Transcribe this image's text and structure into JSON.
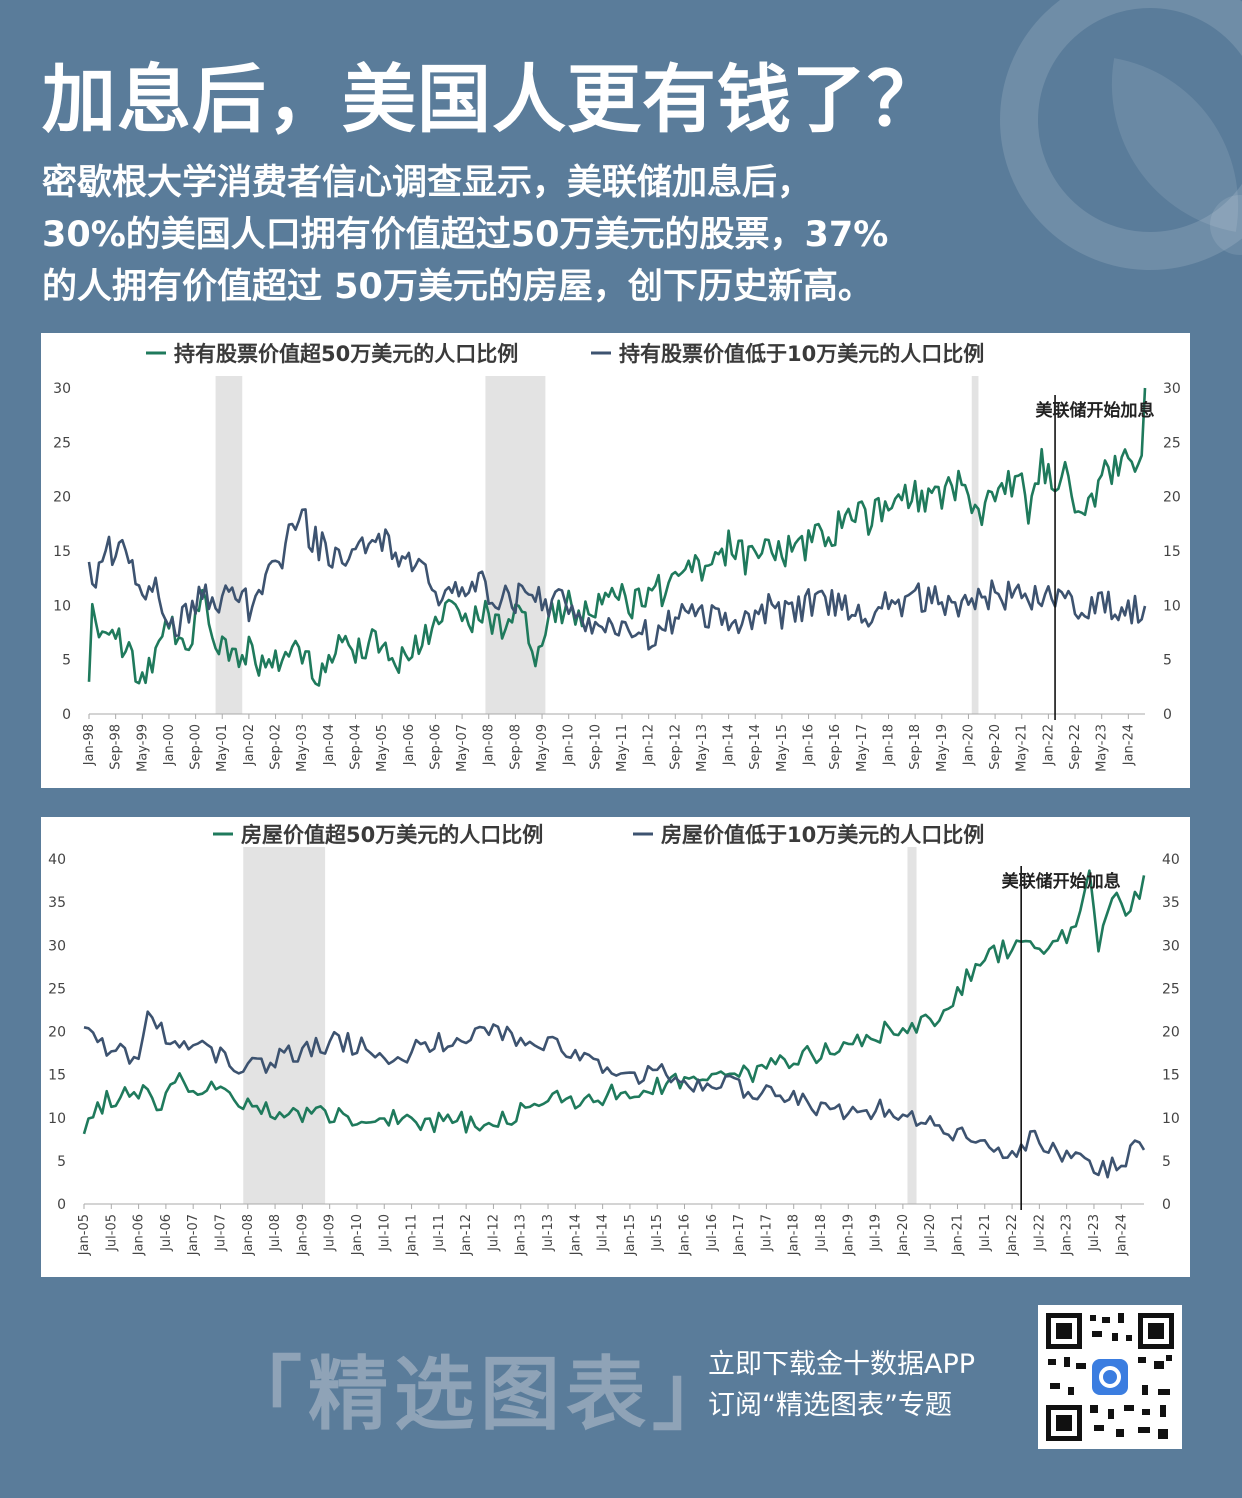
{
  "title": "加息后，美国人更有钱了？",
  "subtitle": [
    "密歇根大学消费者信心调查显示，美联储加息后，",
    "30%的美国人口拥有价值超过50万美元的股票，37%",
    "的人拥有价值超过 50万美元的房屋，创下历史新高。"
  ],
  "footer": {
    "brand": "「精选图表」",
    "line1": "立即下载金十数据APP",
    "line2": "订阅“精选图表”专题"
  },
  "colors": {
    "green": "#1f7a5c",
    "navy": "#3d5370",
    "recession": "#e3e3e3",
    "background": "#5a7c9a"
  },
  "chart_data": [
    {
      "type": "line",
      "x_start": "1998-01",
      "x_end": "2024-06",
      "xtick_labels": [
        "Jan-98",
        "Sep-98",
        "May-99",
        "Jan-00",
        "Sep-00",
        "May-01",
        "Jan-02",
        "Sep-02",
        "May-03",
        "Jan-04",
        "Sep-04",
        "May-05",
        "Jan-06",
        "Sep-06",
        "May-07",
        "Jan-08",
        "Sep-08",
        "May-09",
        "Jan-10",
        "Sep-10",
        "May-11",
        "Jan-12",
        "Sep-12",
        "May-13",
        "Jan-14",
        "Sep-14",
        "May-15",
        "Jan-16",
        "Sep-16",
        "May-17",
        "Jan-18",
        "Sep-18",
        "May-19",
        "Jan-20",
        "Sep-20",
        "May-21",
        "Jan-22",
        "Sep-22",
        "May-23",
        "Jan-24"
      ],
      "ylim": [
        0,
        30
      ],
      "yticks": [
        0,
        5,
        10,
        15,
        20,
        25,
        30
      ],
      "recession_bands": [
        [
          "2001-03",
          "2001-11"
        ],
        [
          "2007-12",
          "2009-06"
        ],
        [
          "2020-02",
          "2020-04"
        ]
      ],
      "annotation": {
        "text": "美联储开始加息",
        "x": "2022-03"
      },
      "series": [
        {
          "name": "持有股票价值超50万美元的人口比例",
          "color": "#1f7a5c",
          "points": [
            [
              "1998-01",
              2
            ],
            [
              "1998-02",
              9
            ],
            [
              "1998-06",
              8
            ],
            [
              "1998-12",
              6
            ],
            [
              "1999-03",
              4
            ],
            [
              "1999-06",
              3
            ],
            [
              "1999-09",
              6
            ],
            [
              "2000-01",
              8
            ],
            [
              "2000-06",
              6
            ],
            [
              "2000-11",
              10
            ],
            [
              "2001-03",
              7
            ],
            [
              "2001-07",
              5
            ],
            [
              "2002-01",
              6
            ],
            [
              "2002-06",
              4
            ],
            [
              "2003-01",
              6
            ],
            [
              "2003-06",
              5
            ],
            [
              "2003-09",
              3
            ],
            [
              "2004-01",
              6
            ],
            [
              "2004-09",
              6
            ],
            [
              "2005-03",
              7
            ],
            [
              "2005-09",
              5
            ],
            [
              "2006-03",
              6
            ],
            [
              "2006-09",
              8
            ],
            [
              "2007-02",
              10
            ],
            [
              "2007-06",
              9
            ],
            [
              "2008-01",
              9
            ],
            [
              "2008-06",
              8
            ],
            [
              "2008-11",
              10
            ],
            [
              "2009-03",
              5
            ],
            [
              "2009-08",
              9
            ],
            [
              "2009-12",
              10
            ],
            [
              "2010-06",
              9
            ],
            [
              "2011-01",
              11
            ],
            [
              "2011-09",
              10
            ],
            [
              "2012-03",
              12
            ],
            [
              "2012-06",
              11
            ],
            [
              "2012-09",
              13
            ],
            [
              "2013-01",
              14
            ],
            [
              "2013-05",
              13
            ],
            [
              "2013-10",
              14
            ],
            [
              "2014-02",
              16
            ],
            [
              "2014-06",
              14
            ],
            [
              "2014-11",
              16
            ],
            [
              "2015-04",
              15
            ],
            [
              "2015-10",
              15
            ],
            [
              "2016-03",
              16
            ],
            [
              "2016-09",
              17
            ],
            [
              "2017-03",
              19
            ],
            [
              "2017-07",
              18
            ],
            [
              "2018-01",
              19
            ],
            [
              "2018-06",
              20
            ],
            [
              "2018-11",
              20
            ],
            [
              "2019-03",
              20
            ],
            [
              "2019-09",
              21
            ],
            [
              "2020-01",
              21
            ],
            [
              "2020-04",
              18
            ],
            [
              "2020-08",
              20
            ],
            [
              "2021-01",
              21
            ],
            [
              "2021-05",
              22
            ],
            [
              "2021-07",
              19
            ],
            [
              "2021-11",
              23
            ],
            [
              "2022-03",
              21
            ],
            [
              "2022-06",
              24
            ],
            [
              "2022-09",
              20
            ],
            [
              "2022-12",
              18
            ],
            [
              "2023-03",
              20
            ],
            [
              "2023-07",
              23
            ],
            [
              "2023-10",
              22
            ],
            [
              "2024-01",
              24
            ],
            [
              "2024-03",
              22
            ],
            [
              "2024-05",
              25
            ],
            [
              "2024-06",
              30
            ]
          ]
        },
        {
          "name": "持有股票价值低于10万美元的人口比例",
          "color": "#3d5370",
          "points": [
            [
              "1998-01",
              15
            ],
            [
              "1998-02",
              12
            ],
            [
              "1998-07",
              15
            ],
            [
              "1998-12",
              16
            ],
            [
              "1999-03",
              13
            ],
            [
              "1999-06",
              11
            ],
            [
              "1999-09",
              12
            ],
            [
              "2000-01",
              8
            ],
            [
              "2000-06",
              9
            ],
            [
              "2000-11",
              11
            ],
            [
              "2001-03",
              10
            ],
            [
              "2001-07",
              11
            ],
            [
              "2002-01",
              10
            ],
            [
              "2002-06",
              12
            ],
            [
              "2002-11",
              14
            ],
            [
              "2003-04",
              19
            ],
            [
              "2003-08",
              16
            ],
            [
              "2004-01",
              15
            ],
            [
              "2004-06",
              14
            ],
            [
              "2004-11",
              15
            ],
            [
              "2005-06",
              16
            ],
            [
              "2005-11",
              14
            ],
            [
              "2006-03",
              14
            ],
            [
              "2006-09",
              11
            ],
            [
              "2007-02",
              11
            ],
            [
              "2007-09",
              12
            ],
            [
              "2008-03",
              11
            ],
            [
              "2008-09",
              10
            ],
            [
              "2009-01",
              12
            ],
            [
              "2009-06",
              10
            ],
            [
              "2010-01",
              10
            ],
            [
              "2010-06",
              9
            ],
            [
              "2011-01",
              8
            ],
            [
              "2011-06",
              8
            ],
            [
              "2012-01",
              7
            ],
            [
              "2012-06",
              8
            ],
            [
              "2013-01",
              10
            ],
            [
              "2013-06",
              9
            ],
            [
              "2014-01",
              9
            ],
            [
              "2014-06",
              8
            ],
            [
              "2015-01",
              10
            ],
            [
              "2015-06",
              9
            ],
            [
              "2016-01",
              10
            ],
            [
              "2016-06",
              10
            ],
            [
              "2017-01",
              10
            ],
            [
              "2017-06",
              9
            ],
            [
              "2018-01",
              11
            ],
            [
              "2018-06",
              10
            ],
            [
              "2019-01",
              11
            ],
            [
              "2019-06",
              10
            ],
            [
              "2020-01",
              10
            ],
            [
              "2020-06",
              11
            ],
            [
              "2021-01",
              11
            ],
            [
              "2021-06",
              10
            ],
            [
              "2022-01",
              11
            ],
            [
              "2022-06",
              10
            ],
            [
              "2023-01",
              10
            ],
            [
              "2023-06",
              10
            ],
            [
              "2024-01",
              10
            ],
            [
              "2024-06",
              9
            ]
          ]
        }
      ]
    },
    {
      "type": "line",
      "x_start": "2005-01",
      "x_end": "2024-06",
      "xtick_labels": [
        "Jan-05",
        "Jul-05",
        "Jan-06",
        "Jul-06",
        "Jan-07",
        "Jul-07",
        "Jan-08",
        "Jul-08",
        "Jan-09",
        "Jul-09",
        "Jan-10",
        "Jul-10",
        "Jan-11",
        "Jul-11",
        "Jan-12",
        "Jul-12",
        "Jan-13",
        "Jul-13",
        "Jan-14",
        "Jul-14",
        "Jan-15",
        "Jul-15",
        "Jan-16",
        "Jul-16",
        "Jan-17",
        "Jul-17",
        "Jan-18",
        "Jul-18",
        "Jan-19",
        "Jul-19",
        "Jan-20",
        "Jul-20",
        "Jan-21",
        "Jul-21",
        "Jan-22",
        "Jul-22",
        "Jan-23",
        "Jul-23",
        "Jan-24"
      ],
      "ylim": [
        0,
        40
      ],
      "yticks": [
        0,
        5,
        10,
        15,
        20,
        25,
        30,
        35,
        40
      ],
      "recession_bands": [
        [
          "2007-12",
          "2009-06"
        ],
        [
          "2020-02",
          "2020-04"
        ]
      ],
      "annotation": {
        "text": "美联储开始加息",
        "x": "2022-03"
      },
      "series": [
        {
          "name": "房屋价值超50万美元的人口比例",
          "color": "#1f7a5c",
          "points": [
            [
              "2005-01",
              9
            ],
            [
              "2005-06",
              12
            ],
            [
              "2006-01",
              13
            ],
            [
              "2006-06",
              11
            ],
            [
              "2006-10",
              15
            ],
            [
              "2007-03",
              12
            ],
            [
              "2007-07",
              14
            ],
            [
              "2007-11",
              12
            ],
            [
              "2008-03",
              11
            ],
            [
              "2008-09",
              10
            ],
            [
              "2009-03",
              11
            ],
            [
              "2009-09",
              10
            ],
            [
              "2010-03",
              10
            ],
            [
              "2010-09",
              10
            ],
            [
              "2011-03",
              9
            ],
            [
              "2011-09",
              10
            ],
            [
              "2012-03",
              9
            ],
            [
              "2012-09",
              10
            ],
            [
              "2013-03",
              11
            ],
            [
              "2013-09",
              12
            ],
            [
              "2014-03",
              12
            ],
            [
              "2014-09",
              13
            ],
            [
              "2015-03",
              13
            ],
            [
              "2015-09",
              14
            ],
            [
              "2016-03",
              14
            ],
            [
              "2016-09",
              15
            ],
            [
              "2017-03",
              15
            ],
            [
              "2017-09",
              16
            ],
            [
              "2018-03",
              17
            ],
            [
              "2018-09",
              18
            ],
            [
              "2019-03",
              19
            ],
            [
              "2019-09",
              20
            ],
            [
              "2020-03",
              20
            ],
            [
              "2020-09",
              22
            ],
            [
              "2021-03",
              26
            ],
            [
              "2021-09",
              29
            ],
            [
              "2022-03",
              30
            ],
            [
              "2022-09",
              30
            ],
            [
              "2023-03",
              32
            ],
            [
              "2023-06",
              38
            ],
            [
              "2023-08",
              30
            ],
            [
              "2023-11",
              36
            ],
            [
              "2024-03",
              34
            ],
            [
              "2024-06",
              37
            ]
          ]
        },
        {
          "name": "房屋价值低于10万美元的人口比例",
          "color": "#3d5370",
          "points": [
            [
              "2005-01",
              21
            ],
            [
              "2005-06",
              18
            ],
            [
              "2006-01",
              17
            ],
            [
              "2006-03",
              22
            ],
            [
              "2006-09",
              18
            ],
            [
              "2007-03",
              19
            ],
            [
              "2007-09",
              16
            ],
            [
              "2008-03",
              16
            ],
            [
              "2008-09",
              17
            ],
            [
              "2009-03",
              18
            ],
            [
              "2009-09",
              19
            ],
            [
              "2010-03",
              18
            ],
            [
              "2010-09",
              17
            ],
            [
              "2011-03",
              18
            ],
            [
              "2011-09",
              19
            ],
            [
              "2012-03",
              20
            ],
            [
              "2012-09",
              20
            ],
            [
              "2013-03",
              19
            ],
            [
              "2013-09",
              18
            ],
            [
              "2014-03",
              17
            ],
            [
              "2014-09",
              16
            ],
            [
              "2015-03",
              15
            ],
            [
              "2015-09",
              15
            ],
            [
              "2016-03",
              14
            ],
            [
              "2016-09",
              14
            ],
            [
              "2017-03",
              13
            ],
            [
              "2017-09",
              13
            ],
            [
              "2018-03",
              12
            ],
            [
              "2018-09",
              11
            ],
            [
              "2019-03",
              11
            ],
            [
              "2019-09",
              11
            ],
            [
              "2020-03",
              10
            ],
            [
              "2020-09",
              9
            ],
            [
              "2021-03",
              8
            ],
            [
              "2021-09",
              7
            ],
            [
              "2022-01",
              5
            ],
            [
              "2022-06",
              8
            ],
            [
              "2022-12",
              5
            ],
            [
              "2023-06",
              5
            ],
            [
              "2023-10",
              4
            ],
            [
              "2024-01",
              5
            ],
            [
              "2024-06",
              7
            ]
          ]
        }
      ]
    }
  ]
}
